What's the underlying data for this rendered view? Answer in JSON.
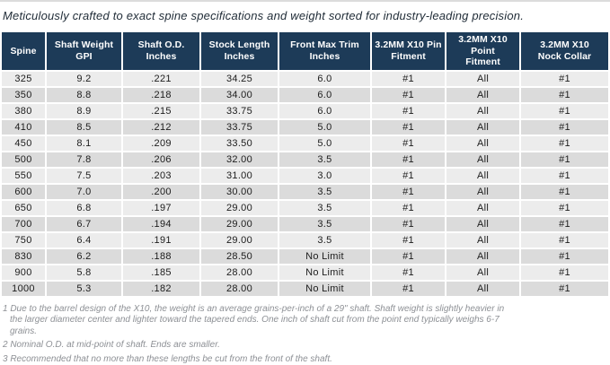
{
  "page": {
    "tagline": "Meticulously crafted to exact spine specifications and weight sorted for industry-leading precision."
  },
  "colors": {
    "header_bg": "#1d3b58",
    "header_text": "#ffffff",
    "row_light": "#ececec",
    "row_dark": "#dbdbdb",
    "body_text": "#1c1c1c",
    "footnote_text": "#8d9095"
  },
  "table": {
    "columns": [
      {
        "line1": "Spine",
        "line2": ""
      },
      {
        "line1": "Shaft Weight",
        "line2": "GPI"
      },
      {
        "line1": "Shaft O.D.",
        "line2": "Inches"
      },
      {
        "line1": "Stock Length",
        "line2": "Inches"
      },
      {
        "line1": "Front Max Trim",
        "line2": "Inches"
      },
      {
        "line1": "3.2MM X10 Pin",
        "line2": "Fitment"
      },
      {
        "line1": "3.2MM X10 Point",
        "line2": "Fitment"
      },
      {
        "line1": "3.2MM X10",
        "line2": "Nock Collar"
      }
    ],
    "rows": [
      [
        "325",
        "9.2",
        ".221",
        "34.25",
        "6.0",
        "#1",
        "All",
        "#1"
      ],
      [
        "350",
        "8.8",
        ".218",
        "34.00",
        "6.0",
        "#1",
        "All",
        "#1"
      ],
      [
        "380",
        "8.9",
        ".215",
        "33.75",
        "6.0",
        "#1",
        "All",
        "#1"
      ],
      [
        "410",
        "8.5",
        ".212",
        "33.75",
        "5.0",
        "#1",
        "All",
        "#1"
      ],
      [
        "450",
        "8.1",
        ".209",
        "33.50",
        "5.0",
        "#1",
        "All",
        "#1"
      ],
      [
        "500",
        "7.8",
        ".206",
        "32.00",
        "3.5",
        "#1",
        "All",
        "#1"
      ],
      [
        "550",
        "7.5",
        ".203",
        "31.00",
        "3.0",
        "#1",
        "All",
        "#1"
      ],
      [
        "600",
        "7.0",
        ".200",
        "30.00",
        "3.5",
        "#1",
        "All",
        "#1"
      ],
      [
        "650",
        "6.8",
        ".197",
        "29.00",
        "3.5",
        "#1",
        "All",
        "#1"
      ],
      [
        "700",
        "6.7",
        ".194",
        "29.00",
        "3.5",
        "#1",
        "All",
        "#1"
      ],
      [
        "750",
        "6.4",
        ".191",
        "29.00",
        "3.5",
        "#1",
        "All",
        "#1"
      ],
      [
        "830",
        "6.2",
        ".188",
        "28.50",
        "No Limit",
        "#1",
        "All",
        "#1"
      ],
      [
        "900",
        "5.8",
        ".185",
        "28.00",
        "No Limit",
        "#1",
        "All",
        "#1"
      ],
      [
        "1000",
        "5.3",
        ".182",
        "28.00",
        "No Limit",
        "#1",
        "All",
        "#1"
      ]
    ]
  },
  "footnotes": [
    "1 Due to the barrel design of the X10, the weight is an average grains-per-inch of a 29\" shaft. Shaft weight is slightly heavier in the larger diameter center and lighter toward the tapered ends. One inch of shaft cut from the point end typically weighs 6-7 grains.",
    "2 Nominal O.D. at mid-point of shaft. Ends are smaller.",
    "3 Recommended that no more than these lengths be cut from the front of the shaft."
  ]
}
